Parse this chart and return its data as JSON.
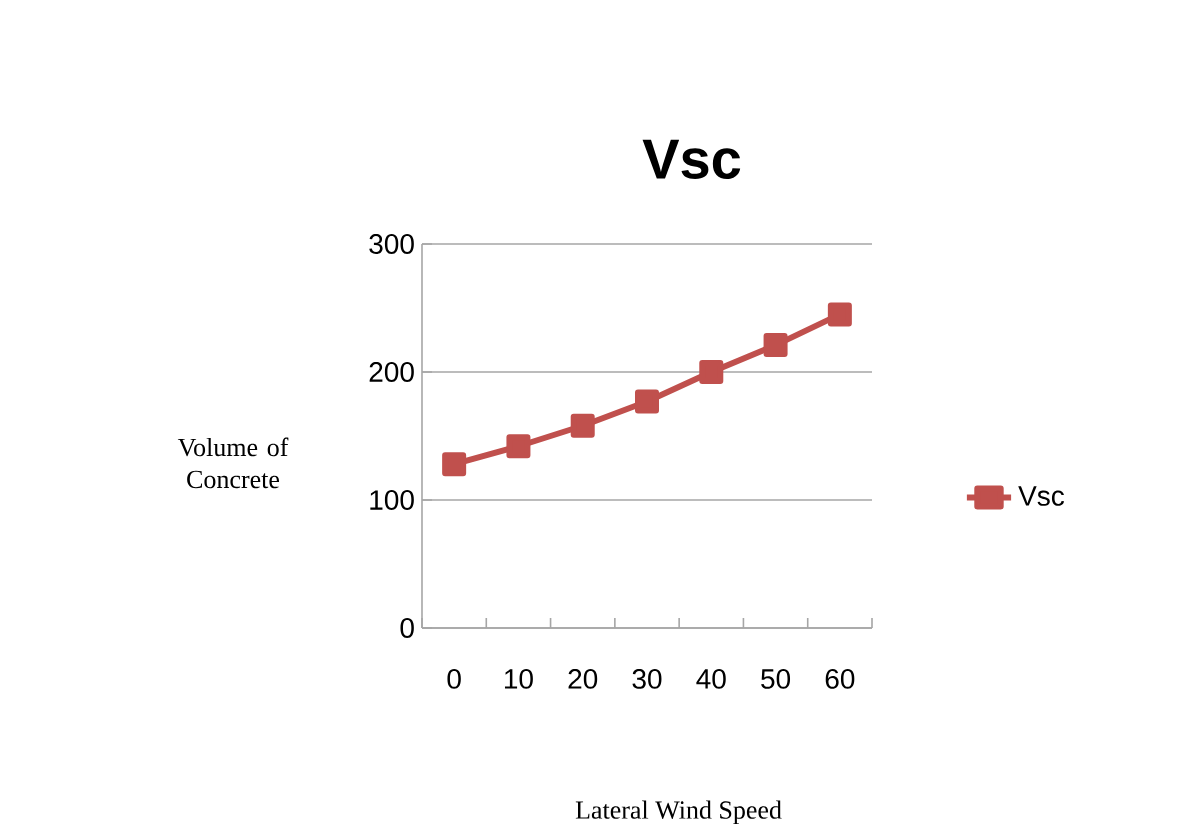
{
  "chart_data": {
    "type": "line",
    "title": "Vsc",
    "xlabel": "Lateral Wind Speed",
    "ylabel": "Volume of Concrete",
    "categories": [
      "0",
      "10",
      "20",
      "30",
      "40",
      "50",
      "60"
    ],
    "series": [
      {
        "name": "Vsc",
        "color": "#c0504d",
        "values": [
          128,
          142,
          158,
          177,
          200,
          221,
          245
        ]
      }
    ],
    "ylim": [
      0,
      300
    ],
    "yticks": [
      0,
      100,
      200,
      300
    ],
    "grid": "y",
    "legend": "right",
    "marker": "square",
    "line_style": "solid"
  }
}
